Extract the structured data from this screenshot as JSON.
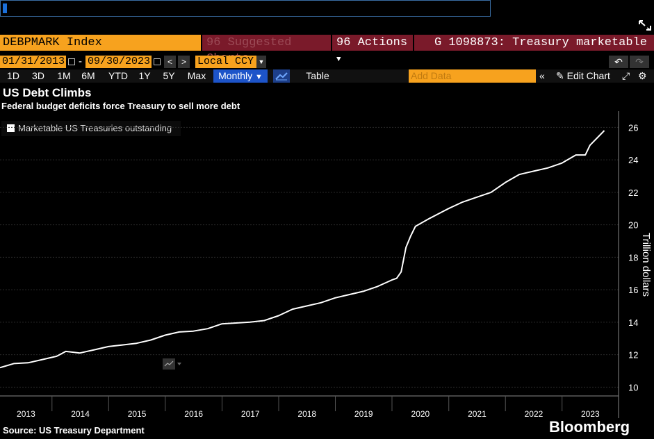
{
  "command_line": {
    "value": ""
  },
  "toolbar": {
    "security": "DEBPMARK Index",
    "suggested_code": "96",
    "suggested_label": "Suggested Charts",
    "actions_code": "96",
    "actions_label": "Actions",
    "title": "G 1098873: Treasury marketable"
  },
  "dates": {
    "start": "01/31/2013",
    "separator": "-",
    "end": "09/30/2023",
    "currency": "Local CCY"
  },
  "periods": [
    "1D",
    "3D",
    "1M",
    "6M",
    "YTD",
    "1Y",
    "5Y",
    "Max"
  ],
  "frequency": "Monthly",
  "table_label": "Table",
  "add_data_placeholder": "Add Data",
  "edit_chart_label": "Edit Chart",
  "icons": {
    "expand": "expand-icon",
    "calendar": "calendar-icon",
    "prev": "chevron-left-icon",
    "next": "chevron-right-icon",
    "undo": "undo-icon",
    "redo": "redo-icon",
    "line_chart": "line-chart-icon",
    "collapse": "double-chevron-left-icon",
    "edit": "pencil-icon",
    "zoom": "zoom-icon",
    "gear": "gear-icon"
  },
  "colors": {
    "accent_orange": "#f7a21e",
    "header_maroon": "#7a1a2a",
    "active_blue": "#1d54c9",
    "line": "#ffffff"
  },
  "chart_data": {
    "type": "line",
    "title": "US Debt Climbs",
    "subtitle": "Federal budget deficits force Treasury to sell more debt",
    "ylabel": "Trillion dollars",
    "y_ticks": [
      10,
      12,
      14,
      16,
      18,
      20,
      22,
      24,
      26
    ],
    "ylim": [
      9.8,
      27.0
    ],
    "x_tick_labels": [
      "2013",
      "2014",
      "2015",
      "2016",
      "2017",
      "2018",
      "2019",
      "2020",
      "2021",
      "2022",
      "2023"
    ],
    "xlim": [
      "2013-01-31",
      "2023-12-31"
    ],
    "grid": true,
    "legend_position": "top-left",
    "source": "Source: US Treasury Department",
    "brand": "Bloomberg",
    "series": [
      {
        "name": "Marketable US Treasuries outstanding",
        "points": [
          [
            "2013-01-31",
            11.2
          ],
          [
            "2013-04-30",
            11.45
          ],
          [
            "2013-07-31",
            11.5
          ],
          [
            "2013-10-31",
            11.7
          ],
          [
            "2014-01-31",
            11.9
          ],
          [
            "2014-03-31",
            12.2
          ],
          [
            "2014-06-30",
            12.1
          ],
          [
            "2014-09-30",
            12.3
          ],
          [
            "2014-12-31",
            12.5
          ],
          [
            "2015-03-31",
            12.6
          ],
          [
            "2015-06-30",
            12.7
          ],
          [
            "2015-09-30",
            12.9
          ],
          [
            "2015-12-31",
            13.2
          ],
          [
            "2016-03-31",
            13.4
          ],
          [
            "2016-06-30",
            13.45
          ],
          [
            "2016-09-30",
            13.6
          ],
          [
            "2016-12-31",
            13.9
          ],
          [
            "2017-03-31",
            13.95
          ],
          [
            "2017-06-30",
            14.0
          ],
          [
            "2017-09-30",
            14.1
          ],
          [
            "2017-12-31",
            14.4
          ],
          [
            "2018-03-31",
            14.8
          ],
          [
            "2018-06-30",
            15.0
          ],
          [
            "2018-09-30",
            15.2
          ],
          [
            "2018-12-31",
            15.5
          ],
          [
            "2019-03-31",
            15.7
          ],
          [
            "2019-06-30",
            15.9
          ],
          [
            "2019-09-30",
            16.2
          ],
          [
            "2019-12-31",
            16.6
          ],
          [
            "2020-01-31",
            16.7
          ],
          [
            "2020-02-29",
            17.1
          ],
          [
            "2020-03-31",
            18.6
          ],
          [
            "2020-04-30",
            19.3
          ],
          [
            "2020-05-31",
            19.9
          ],
          [
            "2020-08-31",
            20.4
          ],
          [
            "2020-12-31",
            21.0
          ],
          [
            "2021-03-31",
            21.4
          ],
          [
            "2021-06-30",
            21.7
          ],
          [
            "2021-09-30",
            22.0
          ],
          [
            "2021-12-31",
            22.6
          ],
          [
            "2022-03-31",
            23.1
          ],
          [
            "2022-06-30",
            23.3
          ],
          [
            "2022-09-30",
            23.5
          ],
          [
            "2022-12-31",
            23.8
          ],
          [
            "2023-03-31",
            24.3
          ],
          [
            "2023-05-31",
            24.3
          ],
          [
            "2023-06-30",
            24.9
          ],
          [
            "2023-09-30",
            25.8
          ]
        ]
      }
    ]
  }
}
